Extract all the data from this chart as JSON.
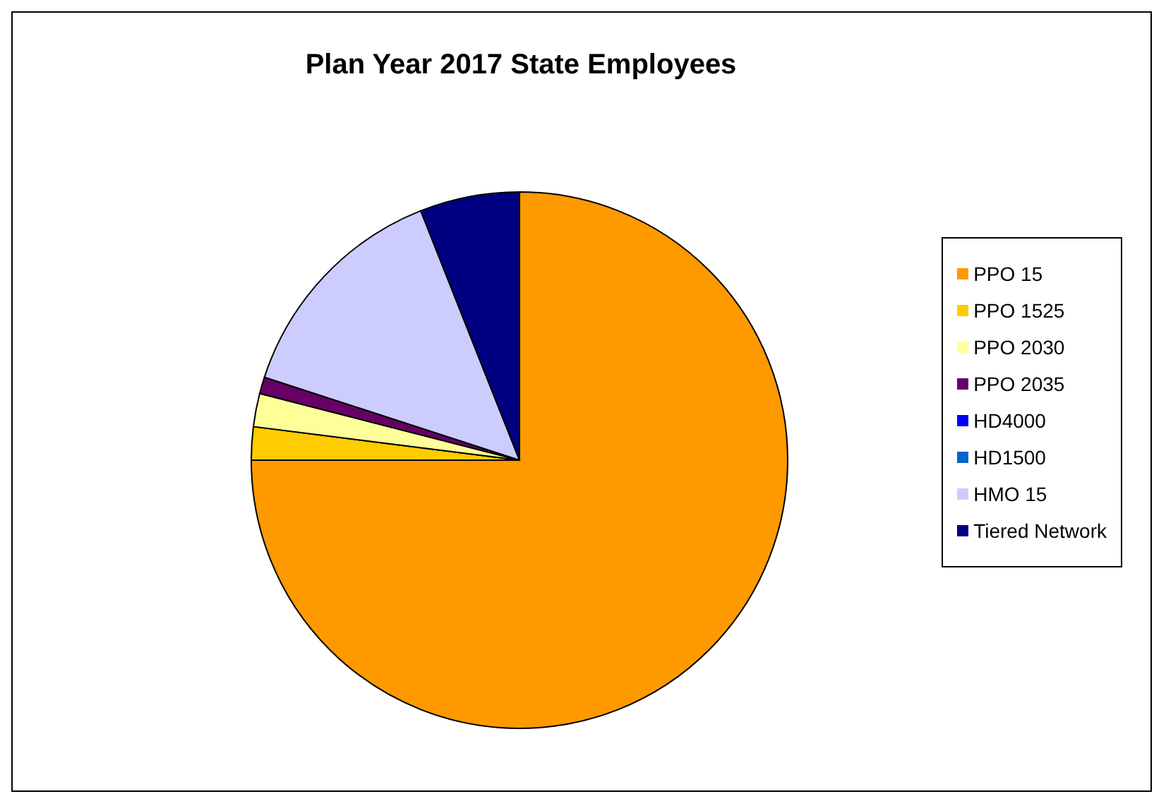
{
  "chart_data": {
    "type": "pie",
    "title": "Plan Year 2017 State Employees",
    "categories": [
      "PPO 15",
      "PPO 1525",
      "PPO 2030",
      "PPO 2035",
      "HD4000",
      "HD1500",
      "HMO 15",
      "Tiered Network"
    ],
    "values": [
      75,
      2,
      2,
      1,
      0,
      0,
      14,
      6
    ],
    "colors": [
      "#ff9900",
      "#ffcc00",
      "#ffff99",
      "#660066",
      "#0000ff",
      "#0066cc",
      "#ccccff",
      "#000080"
    ],
    "legend": "right"
  }
}
